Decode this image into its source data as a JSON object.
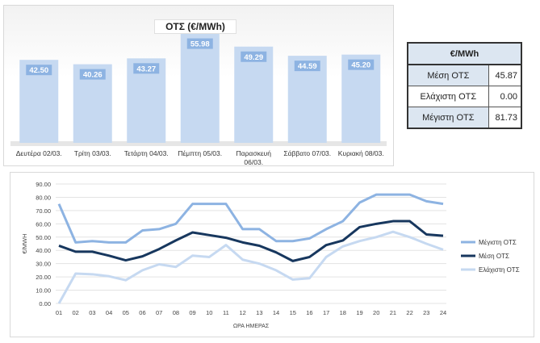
{
  "chart_data": [
    {
      "type": "bar",
      "title": "ΟΤΣ (€/MWh)",
      "categories": [
        "Δευτέρα 02/03.",
        "Τρίτη 03/03.",
        "Τετάρτη 04/03.",
        "Πέμπτη 05/03.",
        "Παρασκευή 06/03.",
        "Σάββατο 07/03.",
        "Κυριακή 08/03."
      ],
      "values": [
        42.5,
        40.26,
        43.27,
        55.98,
        49.29,
        44.59,
        45.2
      ],
      "value_labels": [
        "42.50",
        "40.26",
        "43.27",
        "55.98",
        "49.29",
        "44.59",
        "45.20"
      ],
      "ylim": [
        0,
        62
      ],
      "color": "#c6d9f1",
      "label_color": "#8db3e2"
    },
    {
      "type": "line",
      "xlabel": "ΩΡΑ ΗΜΕΡΑΣ",
      "ylabel": "€/MWH",
      "ylim": [
        0,
        90
      ],
      "yticks": [
        "0.00",
        "10.00",
        "20.00",
        "30.00",
        "40.00",
        "50.00",
        "60.00",
        "70.00",
        "80.00",
        "90.00"
      ],
      "x": [
        "01",
        "02",
        "03",
        "04",
        "05",
        "06",
        "07",
        "08",
        "09",
        "10",
        "11",
        "12",
        "13",
        "14",
        "15",
        "16",
        "17",
        "18",
        "19",
        "20",
        "21",
        "22",
        "23",
        "24"
      ],
      "grid": true,
      "legend": "right",
      "series": [
        {
          "name": "Μέγιστη ΟΤΣ",
          "color": "#8db3e2",
          "values": [
            75,
            46,
            47,
            46,
            46,
            55,
            56,
            60,
            75,
            75,
            75,
            56,
            56,
            47,
            47,
            49,
            56,
            62,
            76,
            82,
            82,
            82,
            77,
            75
          ]
        },
        {
          "name": "Μέση ΟΤΣ",
          "color": "#17375e",
          "values": [
            43.5,
            39,
            39,
            36,
            32.5,
            35.5,
            41,
            47.5,
            53.5,
            51.5,
            49.5,
            46,
            43.5,
            38.5,
            32,
            35,
            44,
            47.5,
            57.5,
            60,
            62,
            62,
            52,
            51
          ]
        },
        {
          "name": "Ελάχιστη ΟΤΣ",
          "color": "#c6d9f1",
          "values": [
            0,
            22.5,
            22,
            20.5,
            17.5,
            25,
            29.5,
            27.5,
            36,
            35,
            44,
            33,
            30,
            25,
            18,
            19,
            35,
            43,
            47,
            50,
            54,
            50,
            45,
            40.5
          ]
        }
      ]
    }
  ],
  "stats_table": {
    "header": "€/MWh",
    "rows": [
      {
        "label": "Μέση ΟΤΣ",
        "value": "45.87"
      },
      {
        "label": "Ελάχιστη ΟΤΣ",
        "value": "0.00"
      },
      {
        "label": "Μέγιστη ΟΤΣ",
        "value": "81.73"
      }
    ]
  }
}
